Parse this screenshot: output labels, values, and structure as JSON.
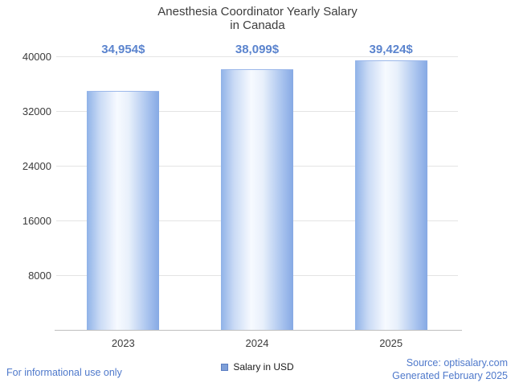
{
  "title": {
    "line1": "Anesthesia Coordinator Yearly Salary",
    "line2": "in Canada"
  },
  "chart_data": {
    "type": "bar",
    "title": "Anesthesia Coordinator Yearly Salary in Canada",
    "categories": [
      "2023",
      "2024",
      "2025"
    ],
    "values": [
      34954,
      38099,
      39424
    ],
    "value_labels": [
      "34,954$",
      "38,099$",
      "39,424$"
    ],
    "series_name": "Salary in USD",
    "xlabel": "",
    "ylabel": "",
    "ylim": [
      0,
      40000
    ],
    "yticks": [
      8000,
      16000,
      24000,
      32000,
      40000
    ],
    "grid": true,
    "legend": {
      "label": "Salary in USD",
      "position": "bottom"
    }
  },
  "colors": {
    "link_blue": "#4f79cb",
    "value_label_blue": "#5b84ce",
    "bar_main": "#8fb0e4",
    "bar_highlight": "#f7faff",
    "legend_swatch": "#7e9fd8",
    "title_gray": "#3d3d3d"
  },
  "footer": {
    "left": "For informational use only",
    "source": "Source: optisalary.com",
    "generated": "Generated February 2025"
  }
}
